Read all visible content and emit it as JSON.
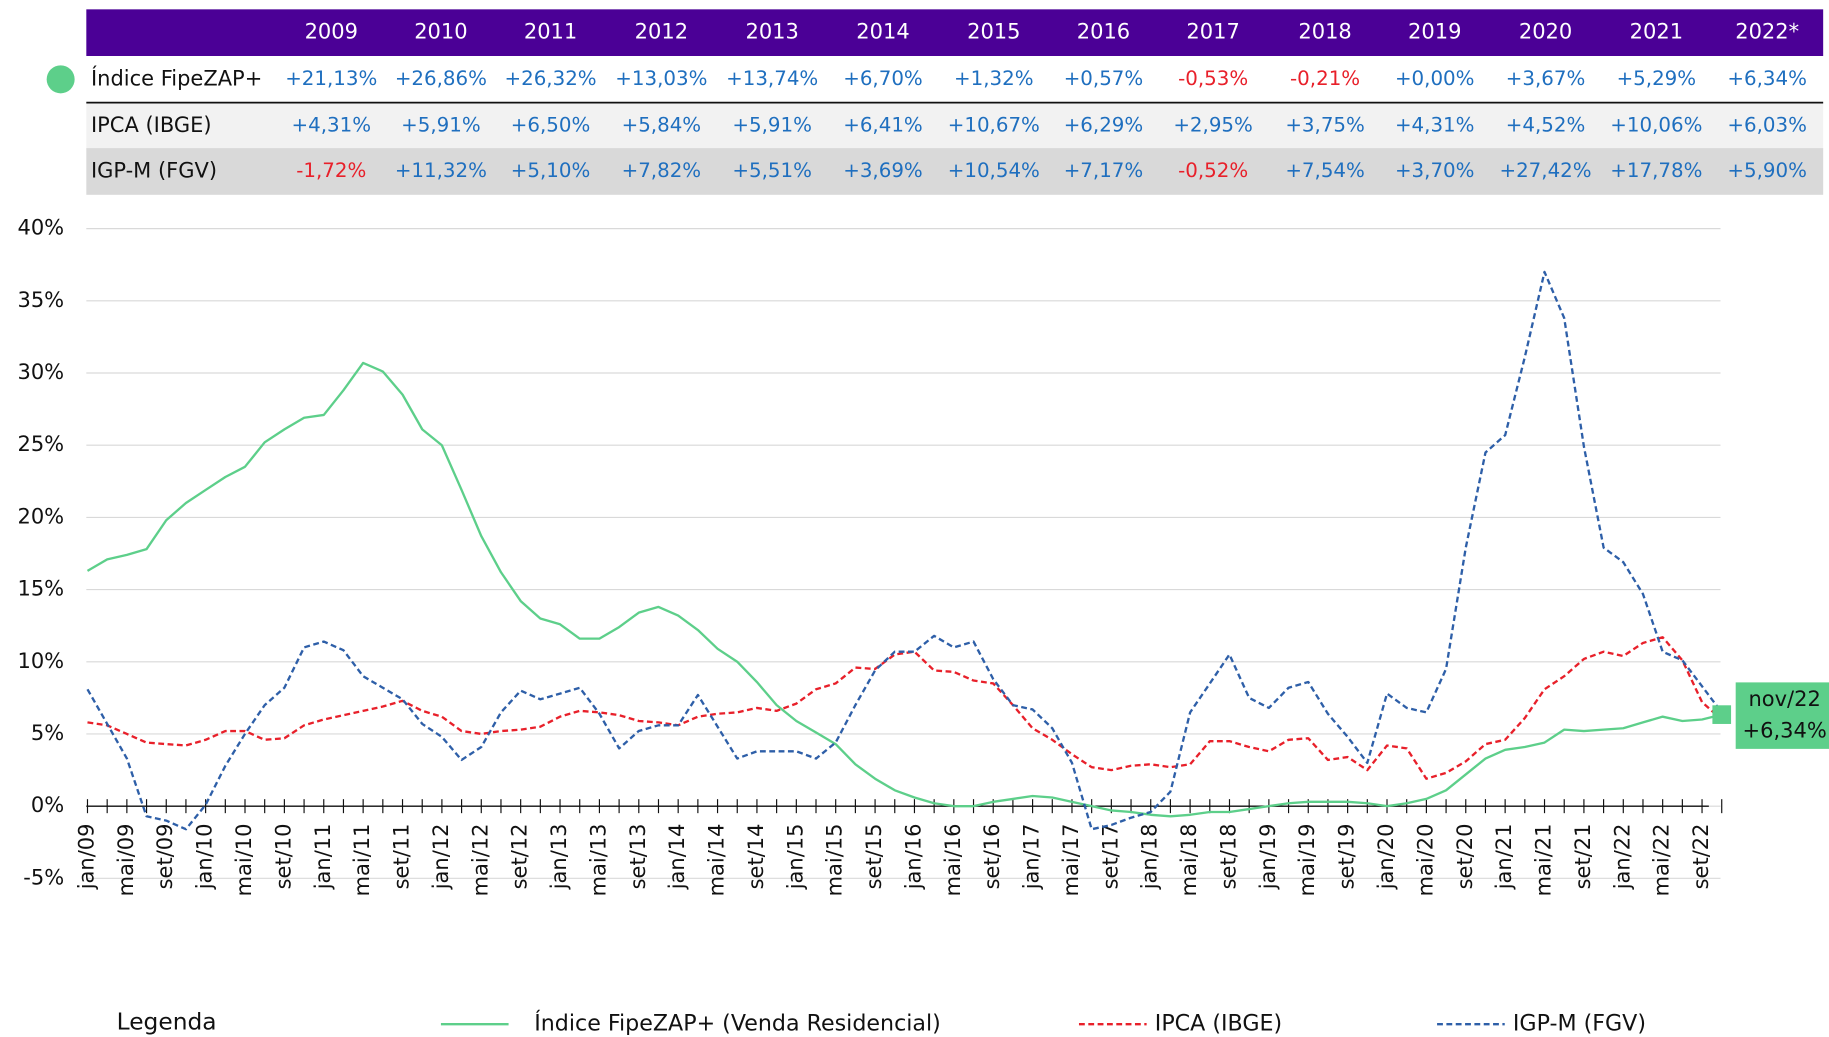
{
  "table": {
    "columns": [
      "2009",
      "2010",
      "2011",
      "2012",
      "2013",
      "2014",
      "2015",
      "2016",
      "2017",
      "2018",
      "2019",
      "2020",
      "2021",
      "2022*"
    ],
    "header_color": "#4b0096",
    "positive_color": "#1f6fbf",
    "negative_color": "#e8202a",
    "rows": [
      {
        "label": "Índice FipeZAP+",
        "marker_color": "#5dcf8a",
        "background": "#ffffff",
        "values": [
          "+21,13%",
          "+26,86%",
          "+26,32%",
          "+13,03%",
          "+13,74%",
          "+6,70%",
          "+1,32%",
          "+0,57%",
          "-0,53%",
          "-0,21%",
          "+0,00%",
          "+3,67%",
          "+5,29%",
          "+6,34%"
        ]
      },
      {
        "label": "IPCA (IBGE)",
        "background": "#f2f2f2",
        "values": [
          "+4,31%",
          "+5,91%",
          "+6,50%",
          "+5,84%",
          "+5,91%",
          "+6,41%",
          "+10,67%",
          "+6,29%",
          "+2,95%",
          "+3,75%",
          "+4,31%",
          "+4,52%",
          "+10,06%",
          "+6,03%"
        ]
      },
      {
        "label": "IGP-M (FGV)",
        "background": "#d9d9d9",
        "values": [
          "-1,72%",
          "+11,32%",
          "+5,10%",
          "+7,82%",
          "+5,51%",
          "+3,69%",
          "+10,54%",
          "+7,17%",
          "-0,52%",
          "+7,54%",
          "+3,70%",
          "+27,42%",
          "+17,78%",
          "+5,90%"
        ]
      }
    ]
  },
  "chart_data": {
    "type": "line",
    "categories": [
      "jan/09",
      null,
      "mai/09",
      null,
      "set/09",
      null,
      "jan/10",
      null,
      "mai/10",
      null,
      "set/10",
      null,
      "jan/11",
      null,
      "mai/11",
      null,
      "set/11",
      null,
      "jan/12",
      null,
      "mai/12",
      null,
      "set/12",
      null,
      "jan/13",
      null,
      "mai/13",
      null,
      "set/13",
      null,
      "jan/14",
      null,
      "mai/14",
      null,
      "set/14",
      null,
      "jan/15",
      null,
      "mai/15",
      null,
      "set/15",
      null,
      "jan/16",
      null,
      "mai/16",
      null,
      "set/16",
      null,
      "jan/17",
      null,
      "mai/17",
      null,
      "set/17",
      null,
      "jan/18",
      null,
      "mai/18",
      null,
      "set/18",
      null,
      "jan/19",
      null,
      "mai/19",
      null,
      "set/19",
      null,
      "jan/20",
      null,
      "mai/20",
      null,
      "set/20",
      null,
      "jan/21",
      null,
      "mai/21",
      null,
      "set/21",
      null,
      "jan/22",
      null,
      "mai/22",
      null,
      "set/22",
      null
    ],
    "series": [
      {
        "name": "Índice FipeZAP+ (Venda Residencial)",
        "color": "#5dcf8a",
        "dash": false,
        "values": [
          16.3,
          17.1,
          17.4,
          17.8,
          19.8,
          21.0,
          21.9,
          22.8,
          23.5,
          25.2,
          26.1,
          26.9,
          27.1,
          28.8,
          30.7,
          30.1,
          28.5,
          26.1,
          25.0,
          21.9,
          18.7,
          16.2,
          14.2,
          13.0,
          12.6,
          11.6,
          11.6,
          12.4,
          13.4,
          13.8,
          13.2,
          12.2,
          10.9,
          10.0,
          8.6,
          7.0,
          5.9,
          5.1,
          4.3,
          2.9,
          1.9,
          1.1,
          0.6,
          0.2,
          0.0,
          0.0,
          0.3,
          0.5,
          0.7,
          0.6,
          0.3,
          0.0,
          -0.3,
          -0.4,
          -0.6,
          -0.7,
          -0.6,
          -0.4,
          -0.4,
          -0.2,
          0.0,
          0.2,
          0.3,
          0.3,
          0.3,
          0.2,
          0.0,
          0.2,
          0.5,
          1.1,
          2.2,
          3.3,
          3.9,
          4.1,
          4.4,
          5.3,
          5.2,
          5.3,
          5.4,
          5.8,
          6.2,
          5.9,
          6.0,
          6.34
        ]
      },
      {
        "name": "IPCA (IBGE)",
        "color": "#e8202a",
        "dash": true,
        "values": [
          5.8,
          5.6,
          5.0,
          4.4,
          4.3,
          4.2,
          4.6,
          5.2,
          5.2,
          4.6,
          4.7,
          5.6,
          6.0,
          6.3,
          6.6,
          6.9,
          7.3,
          6.6,
          6.2,
          5.2,
          5.0,
          5.2,
          5.3,
          5.5,
          6.2,
          6.6,
          6.5,
          6.3,
          5.9,
          5.8,
          5.6,
          6.2,
          6.4,
          6.5,
          6.8,
          6.6,
          7.1,
          8.1,
          8.5,
          9.6,
          9.5,
          10.5,
          10.7,
          9.4,
          9.3,
          8.7,
          8.5,
          7.0,
          5.4,
          4.6,
          3.6,
          2.7,
          2.5,
          2.8,
          2.9,
          2.7,
          2.9,
          4.5,
          4.5,
          4.1,
          3.8,
          4.6,
          4.7,
          3.2,
          3.4,
          2.5,
          4.2,
          4.0,
          1.9,
          2.3,
          3.1,
          4.3,
          4.6,
          6.1,
          8.1,
          9.0,
          10.2,
          10.7,
          10.4,
          11.3,
          11.7,
          10.1,
          7.2,
          6.0
        ]
      },
      {
        "name": "IGP-M (FGV)",
        "color": "#2e5fa8",
        "dash": true,
        "values": [
          8.1,
          5.7,
          3.3,
          -0.7,
          -1.0,
          -1.6,
          0.1,
          2.8,
          5.0,
          7.0,
          8.2,
          11.0,
          11.4,
          10.8,
          9.0,
          8.2,
          7.4,
          5.7,
          4.8,
          3.2,
          4.1,
          6.5,
          8.0,
          7.4,
          7.8,
          8.2,
          6.4,
          4.0,
          5.2,
          5.6,
          5.6,
          7.7,
          5.5,
          3.3,
          3.8,
          3.8,
          3.8,
          3.3,
          4.4,
          7.0,
          9.4,
          10.7,
          10.7,
          11.8,
          11.0,
          11.4,
          8.8,
          7.0,
          6.7,
          5.4,
          3.0,
          -1.6,
          -1.3,
          -0.8,
          -0.4,
          1.0,
          6.5,
          8.5,
          10.5,
          7.5,
          6.8,
          8.2,
          8.6,
          6.4,
          4.8,
          3.0,
          7.8,
          6.8,
          6.5,
          9.5,
          17.9,
          24.5,
          25.7,
          31.1,
          37.0,
          33.8,
          24.9,
          17.9,
          16.9,
          14.7,
          10.7,
          10.1,
          8.3,
          6.5
        ]
      }
    ],
    "ylim": [
      -5,
      40
    ],
    "yticks": [
      {
        "value": -5,
        "label": "-5%"
      },
      {
        "value": 0,
        "label": "0%"
      },
      {
        "value": 5,
        "label": "5%"
      },
      {
        "value": 10,
        "label": "10%"
      },
      {
        "value": 15,
        "label": "15%"
      },
      {
        "value": 20,
        "label": "20%"
      },
      {
        "value": 25,
        "label": "25%"
      },
      {
        "value": 30,
        "label": "30%"
      },
      {
        "value": 35,
        "label": "35%"
      },
      {
        "value": 40,
        "label": "40%"
      }
    ],
    "grid": true,
    "legend_title": "Legenda",
    "legend_position": "bottom",
    "annotation": {
      "lines": [
        "nov/22",
        "+6,34%"
      ],
      "color": "#5dcf8a"
    }
  }
}
